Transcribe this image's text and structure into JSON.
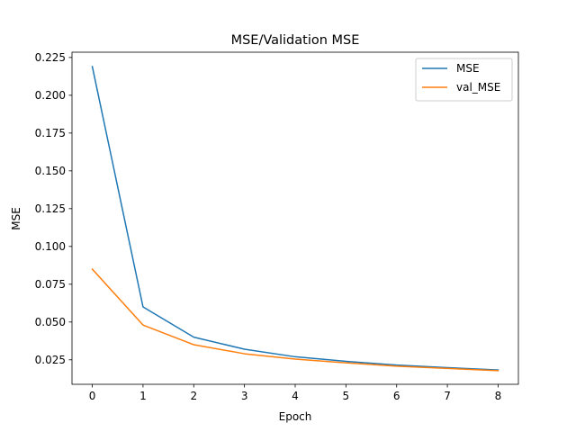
{
  "chart_data": {
    "type": "line",
    "title": "MSE/Validation MSE",
    "xlabel": "Epoch",
    "ylabel": "MSE",
    "x": [
      0,
      1,
      2,
      3,
      4,
      5,
      6,
      7,
      8
    ],
    "series": [
      {
        "name": "MSE",
        "color": "#1f77b4",
        "values": [
          0.219,
          0.06,
          0.04,
          0.032,
          0.027,
          0.024,
          0.0215,
          0.0198,
          0.0183
        ]
      },
      {
        "name": "val_MSE",
        "color": "#ff7f0e",
        "values": [
          0.085,
          0.048,
          0.035,
          0.029,
          0.0255,
          0.023,
          0.0208,
          0.0193,
          0.0178
        ]
      }
    ],
    "xticks": [
      0,
      1,
      2,
      3,
      4,
      5,
      6,
      7,
      8
    ],
    "yticks": [
      0.025,
      0.05,
      0.075,
      0.1,
      0.125,
      0.15,
      0.175,
      0.2,
      0.225
    ],
    "ytick_labels": [
      "0.025",
      "0.050",
      "0.075",
      "0.100",
      "0.125",
      "0.150",
      "0.175",
      "0.200",
      "0.225"
    ],
    "xlim": [
      -0.4,
      8.4
    ],
    "ylim": [
      0.0088,
      0.2285
    ],
    "grid": false,
    "legend_position": "top-right"
  }
}
